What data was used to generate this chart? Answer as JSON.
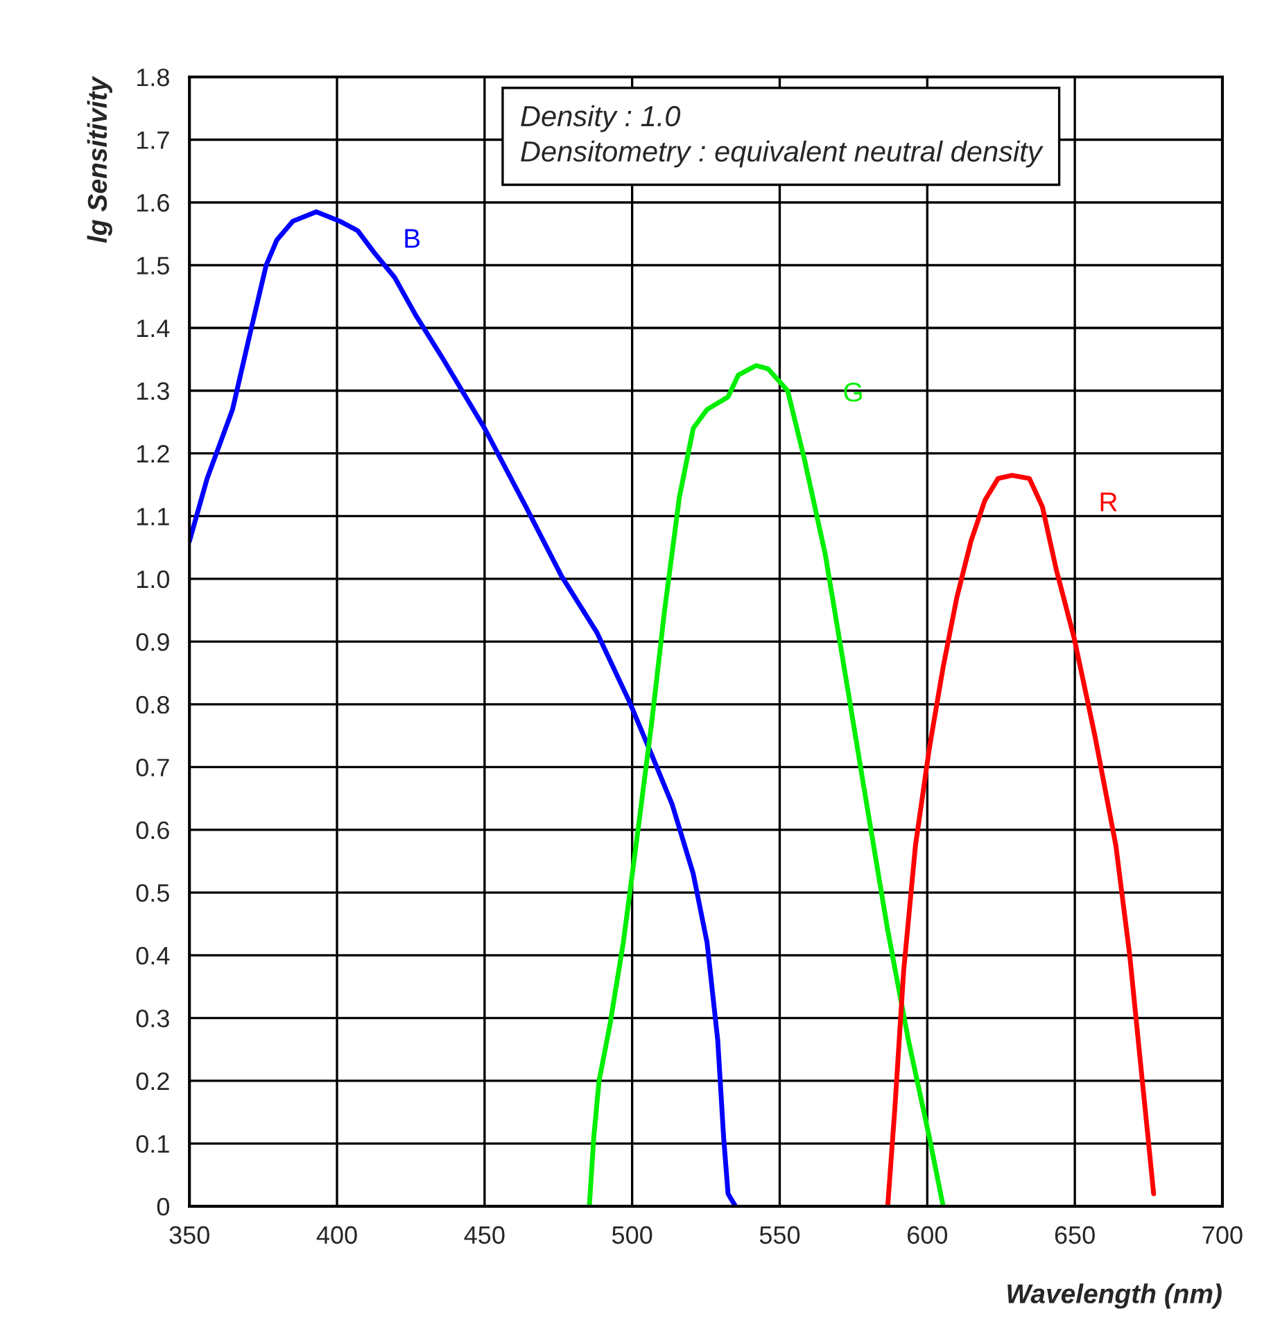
{
  "chart_data": {
    "type": "line",
    "xlabel": "Wavelength (nm)",
    "ylabel": "lg Sensitivity",
    "annotations": [
      "Density : 1.0\nDensitometry : equivalent neutral density"
    ],
    "xlim": [
      350,
      700
    ],
    "xticks": [
      350,
      400,
      450,
      500,
      550,
      600,
      650,
      700
    ],
    "ylim": [
      0,
      1.8
    ],
    "yticks": [
      0,
      0.1,
      0.2,
      0.3,
      0.4,
      0.5,
      0.6,
      0.7,
      0.8,
      0.9,
      {
        "value": 1,
        "label": "1.0"
      },
      1.1,
      1.2,
      1.3,
      1.4,
      1.5,
      1.6,
      1.7,
      1.8
    ],
    "grid": true,
    "legend": false,
    "marker": "none",
    "line_style": "solid",
    "series": [
      {
        "name": "B",
        "color": "#0000ff",
        "x": [
          350,
          356,
          364.6,
          370,
          376,
          379.6,
          385,
          393,
          401,
          407,
          412.6,
          419.6,
          426.7,
          436,
          450,
          464,
          476,
          488,
          499,
          506.6,
          513.6,
          520.7,
          525.4,
          529,
          531,
          532.5,
          535
        ],
        "values": [
          1.06,
          1.16,
          1.27,
          1.38,
          1.5,
          1.54,
          1.57,
          1.585,
          1.57,
          1.555,
          1.52,
          1.48,
          1.42,
          1.35,
          1.24,
          1.115,
          1.005,
          0.915,
          0.805,
          0.72,
          0.64,
          0.53,
          0.42,
          0.265,
          0.11,
          0.02,
          0
        ]
      },
      {
        "name": "G",
        "color": "#00ee00",
        "x": [
          485.5,
          487,
          488.8,
          492.5,
          497,
          502,
          506.6,
          511,
          516,
          520.7,
          525.4,
          532.5,
          536,
          542,
          546,
          552.7,
          558.4,
          565.4,
          572.5,
          579.5,
          586.6,
          593.6,
          600.7,
          605.4
        ],
        "values": [
          0,
          0.11,
          0.2,
          0.29,
          0.42,
          0.6,
          0.77,
          0.95,
          1.13,
          1.24,
          1.27,
          1.29,
          1.325,
          1.34,
          1.335,
          1.3,
          1.19,
          1.04,
          0.84,
          0.64,
          0.44,
          0.265,
          0.11,
          0
        ]
      },
      {
        "name": "R",
        "color": "#ff0000",
        "x": [
          586.6,
          589,
          592,
          596,
          600.7,
          605.4,
          610,
          614.8,
          619.5,
          624,
          628.7,
          634.6,
          639,
          643.7,
          649.8,
          656.8,
          663.9,
          668.6,
          672,
          674.8,
          676.7
        ],
        "values": [
          0,
          0.155,
          0.375,
          0.575,
          0.73,
          0.86,
          0.97,
          1.06,
          1.125,
          1.16,
          1.165,
          1.16,
          1.115,
          1.015,
          0.905,
          0.75,
          0.575,
          0.4,
          0.24,
          0.11,
          0.02
        ]
      }
    ]
  }
}
